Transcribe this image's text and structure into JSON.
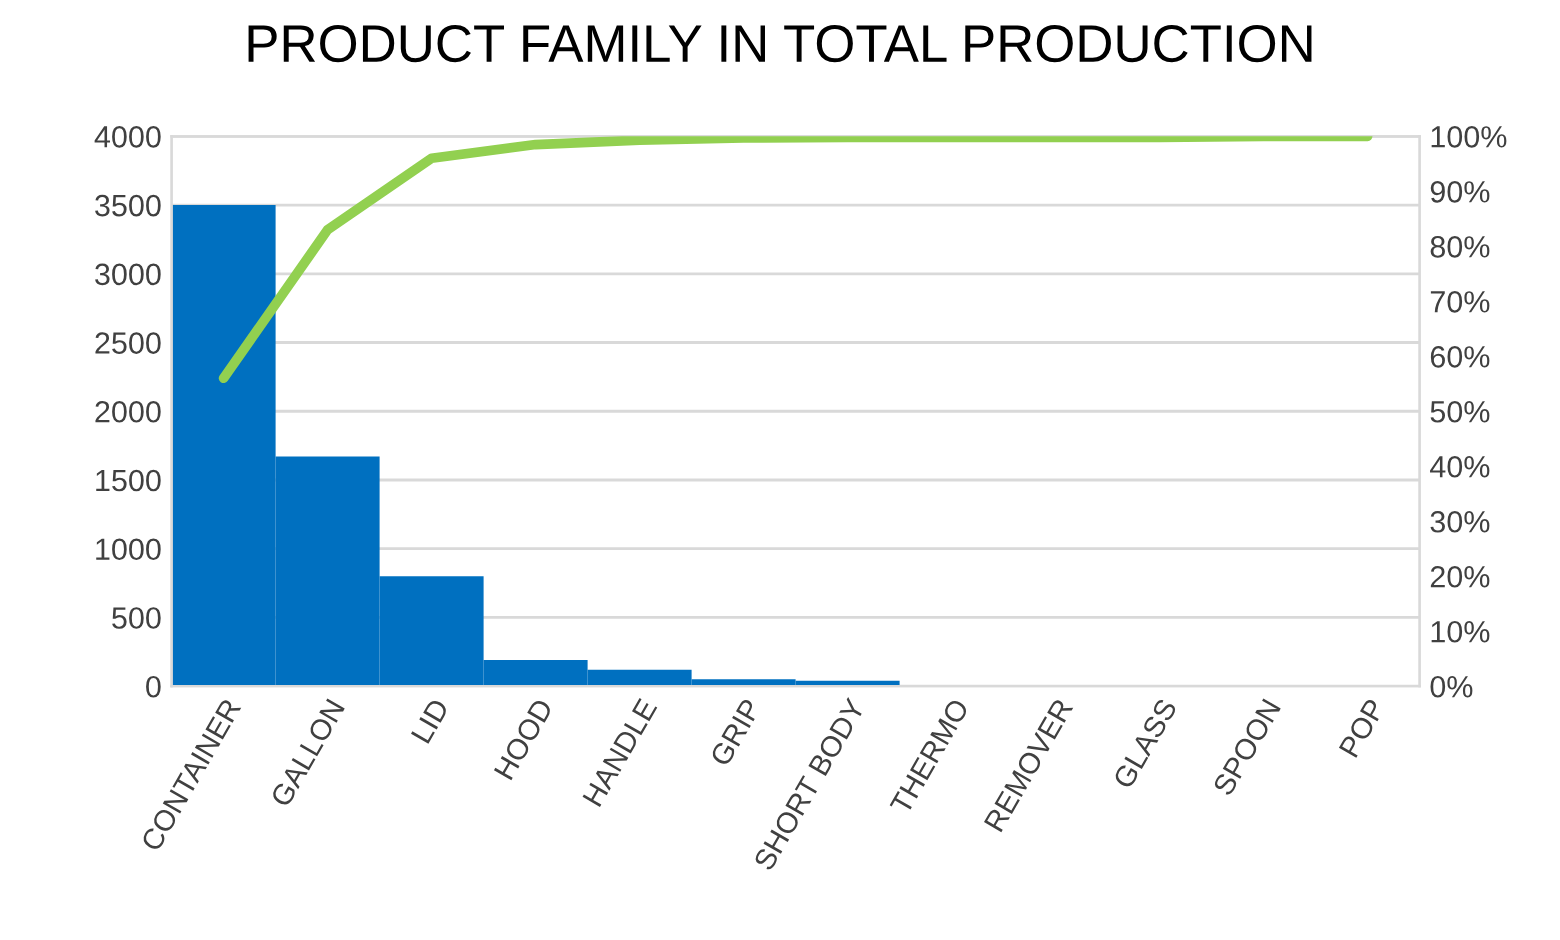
{
  "chart_data": {
    "type": "bar",
    "title": "PRODUCT FAMILY IN TOTAL PRODUCTION",
    "categories": [
      "CONTAINER",
      "GALLON",
      "LID",
      "HOOD",
      "HANDLE",
      "GRIP",
      "SHORT BODY",
      "THERMO",
      "REMOVER",
      "GLASS",
      "SPOON",
      "POP"
    ],
    "series": [
      {
        "color": "#0070c0",
        "values": [
          3500,
          1670,
          800,
          190,
          120,
          50,
          40,
          0,
          0,
          0,
          0,
          0
        ]
      },
      {
        "type": "line",
        "axis": "y2",
        "color": "#92d050",
        "values": [
          56,
          83,
          96,
          98.5,
          99.3,
          99.7,
          99.8,
          99.8,
          99.8,
          99.8,
          100,
          100
        ]
      }
    ],
    "ylim": [
      0,
      4000
    ],
    "yticks": [
      0,
      500,
      1000,
      1500,
      2000,
      2500,
      3000,
      3500,
      4000
    ],
    "y2lim": [
      0,
      100
    ],
    "y2ticks": [
      {
        "value": 0,
        "label": "0%"
      },
      {
        "value": 10,
        "label": "10%"
      },
      {
        "value": 20,
        "label": "20%"
      },
      {
        "value": 30,
        "label": "30%"
      },
      {
        "value": 40,
        "label": "40%"
      },
      {
        "value": 50,
        "label": "50%"
      },
      {
        "value": 60,
        "label": "60%"
      },
      {
        "value": 70,
        "label": "70%"
      },
      {
        "value": 80,
        "label": "80%"
      },
      {
        "value": 90,
        "label": "90%"
      },
      {
        "value": 100,
        "label": "100%"
      }
    ],
    "grid": "y",
    "marker": "none",
    "line_style": "solid"
  }
}
